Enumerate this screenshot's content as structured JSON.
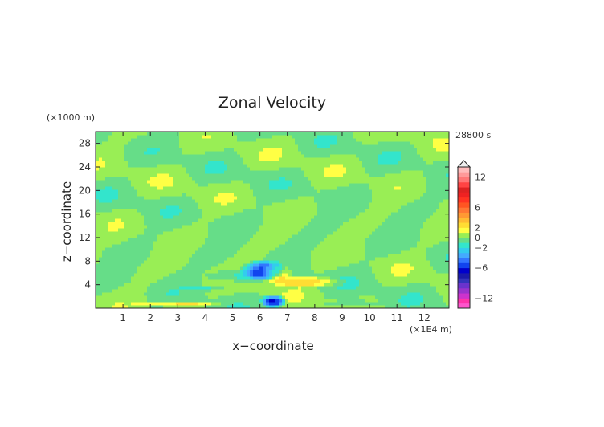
{
  "chart_data": {
    "type": "heatmap",
    "title": "Zonal Velocity",
    "xlabel": "x−coordinate",
    "ylabel": "z−coordinate",
    "x_unit": "(×1E4 m)",
    "y_unit": "(×1000 m)",
    "time_label": "28800 s",
    "xlim": [
      0,
      12.9
    ],
    "ylim": [
      0,
      30
    ],
    "x_ticks": [
      "1",
      "2",
      "3",
      "4",
      "5",
      "6",
      "7",
      "8",
      "9",
      "10",
      "11",
      "12"
    ],
    "x_tick_values": [
      1,
      2,
      3,
      4,
      5,
      6,
      7,
      8,
      9,
      10,
      11,
      12
    ],
    "y_ticks": [
      "4",
      "8",
      "12",
      "16",
      "20",
      "24",
      "28"
    ],
    "y_tick_values": [
      4,
      8,
      12,
      16,
      20,
      24,
      28
    ],
    "colorbar": {
      "ticks": [
        "12",
        "6",
        "2",
        "0",
        "−2",
        "−6",
        "−12"
      ],
      "tick_values": [
        12,
        6,
        2,
        0,
        -2,
        -6,
        -12
      ],
      "levels": [
        -14,
        -13,
        -12,
        -11,
        -10,
        -9,
        -8,
        -7,
        -6,
        -5,
        -4,
        -3,
        -2,
        -1,
        0,
        1,
        2,
        3,
        4,
        5,
        6,
        7,
        8,
        9,
        10,
        11,
        12,
        13,
        14
      ],
      "colors": [
        "#ff55cc",
        "#ff33aa",
        "#cc33cc",
        "#9933cc",
        "#6a33cc",
        "#3333bb",
        "#1a1aaa",
        "#0000cc",
        "#1144ee",
        "#3377ff",
        "#44aaff",
        "#33ccee",
        "#33e5cc",
        "#66dd88",
        "#99ee55",
        "#ffff44",
        "#ffdd33",
        "#ffbb33",
        "#ff9933",
        "#ff7733",
        "#ff5522",
        "#ff3322",
        "#ee2222",
        "#dd2222",
        "#ff4444",
        "#ff7777",
        "#ff9999",
        "#ffbbbb"
      ]
    },
    "regions": [
      {
        "kind": "band",
        "z": 13,
        "x_from": 0,
        "x_to": 12.9,
        "value": 0.5
      },
      {
        "kind": "blob",
        "x": 6.1,
        "z": 6.5,
        "rx": 0.9,
        "rz": 1.8,
        "value": -5
      },
      {
        "kind": "blob",
        "x": 5.3,
        "z": 5.5,
        "rx": 1.4,
        "rz": 1.2,
        "value": -2
      },
      {
        "kind": "blob",
        "x": 4.0,
        "z": 3.5,
        "rx": 1.0,
        "rz": 0.6,
        "value": -1.5
      },
      {
        "kind": "blob",
        "x": 6.6,
        "z": 6.0,
        "rx": 0.6,
        "rz": 1.6,
        "value": 3
      },
      {
        "kind": "blob",
        "x": 7.6,
        "z": 4.5,
        "rx": 1.6,
        "rz": 1.0,
        "value": 2.5
      },
      {
        "kind": "blob",
        "x": 6.5,
        "z": 1.2,
        "rx": 0.5,
        "rz": 1.2,
        "value": -7
      },
      {
        "kind": "blob",
        "x": 3.0,
        "z": 0.8,
        "rx": 1.8,
        "rz": 0.6,
        "value": 2.5
      },
      {
        "kind": "blob",
        "x": 9.5,
        "z": 0.8,
        "rx": 1.2,
        "rz": 0.7,
        "value": -1.5
      }
    ]
  }
}
